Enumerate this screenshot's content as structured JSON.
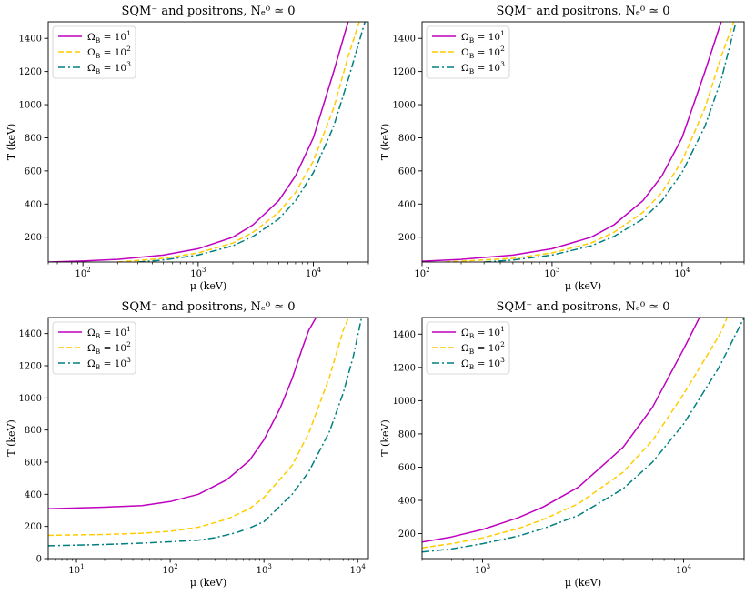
{
  "chart_data": [
    {
      "type": "line",
      "title": "SQM⁻ and positrons, Nₑ⁰ ≃ 0",
      "xlabel": "μ (keV)",
      "ylabel": "T (keV)",
      "xscale": "log",
      "xlim": [
        50,
        30000
      ],
      "ylim": [
        50,
        1500
      ],
      "xticks": [
        {
          "v": 100,
          "b": "10",
          "e": "2"
        },
        {
          "v": 1000,
          "b": "10",
          "e": "3"
        },
        {
          "v": 10000,
          "b": "10",
          "e": "4"
        }
      ],
      "yticks": [
        200,
        400,
        600,
        800,
        1000,
        1200,
        1400
      ],
      "legend_position": "top-left",
      "series": [
        {
          "name": "Ω_B = 10¹",
          "label_base": "Ω",
          "label_sub": "B",
          "label_eq": " = 10",
          "label_exp": "1",
          "color": "#bf00bf",
          "dash": "",
          "x": [
            50,
            100,
            200,
            500,
            1000,
            2000,
            3000,
            5000,
            7000,
            10000,
            15000,
            20000
          ],
          "y": [
            50,
            56,
            66,
            92,
            130,
            200,
            275,
            420,
            570,
            800,
            1200,
            1500
          ]
        },
        {
          "name": "Ω_B = 10²",
          "label_base": "Ω",
          "label_sub": "B",
          "label_eq": " = 10",
          "label_exp": "2",
          "color": "#ffcc00",
          "dash": "6,3",
          "x": [
            200,
            500,
            1000,
            2000,
            3000,
            5000,
            7000,
            10000,
            15000,
            20000,
            25000
          ],
          "y": [
            50,
            72,
            105,
            165,
            230,
            350,
            470,
            660,
            980,
            1290,
            1500
          ]
        },
        {
          "name": "Ω_B = 10³",
          "label_base": "Ω",
          "label_sub": "B",
          "label_eq": " = 10",
          "label_exp": "3",
          "color": "#008080",
          "dash": "8,3,2,3",
          "x": [
            300,
            500,
            1000,
            2000,
            3000,
            5000,
            7000,
            10000,
            15000,
            20000,
            28000
          ],
          "y": [
            50,
            62,
            92,
            148,
            205,
            310,
            420,
            590,
            870,
            1150,
            1500
          ]
        }
      ]
    },
    {
      "type": "line",
      "title": "SQM⁻ and positrons, Nₑ⁰ ≃ 0",
      "xlabel": "μ (keV)",
      "ylabel": "T (keV)",
      "xscale": "log",
      "xlim": [
        100,
        30000
      ],
      "ylim": [
        50,
        1500
      ],
      "xticks": [
        {
          "v": 100,
          "b": "10",
          "e": "2"
        },
        {
          "v": 1000,
          "b": "10",
          "e": "3"
        },
        {
          "v": 10000,
          "b": "10",
          "e": "4"
        }
      ],
      "yticks": [
        200,
        400,
        600,
        800,
        1000,
        1200,
        1400
      ],
      "legend_position": "top-left",
      "series": [
        {
          "name": "Ω_B = 10¹",
          "label_base": "Ω",
          "label_sub": "B",
          "label_eq": " = 10",
          "label_exp": "1",
          "color": "#bf00bf",
          "dash": "",
          "x": [
            100,
            200,
            500,
            1000,
            2000,
            3000,
            5000,
            7000,
            10000,
            15000,
            20000
          ],
          "y": [
            55,
            66,
            92,
            130,
            200,
            275,
            420,
            570,
            800,
            1200,
            1500
          ]
        },
        {
          "name": "Ω_B = 10²",
          "label_base": "Ω",
          "label_sub": "B",
          "label_eq": " = 10",
          "label_exp": "2",
          "color": "#ffcc00",
          "dash": "6,3",
          "x": [
            150,
            500,
            1000,
            2000,
            3000,
            5000,
            7000,
            10000,
            15000,
            20000,
            25000
          ],
          "y": [
            50,
            72,
            105,
            165,
            230,
            350,
            470,
            660,
            980,
            1290,
            1500
          ]
        },
        {
          "name": "Ω_B = 10³",
          "label_base": "Ω",
          "label_sub": "B",
          "label_eq": " = 10",
          "label_exp": "3",
          "color": "#008080",
          "dash": "8,3,2,3",
          "x": [
            300,
            500,
            1000,
            2000,
            3000,
            5000,
            7000,
            10000,
            15000,
            20000,
            26000
          ],
          "y": [
            50,
            62,
            92,
            148,
            205,
            310,
            420,
            590,
            870,
            1150,
            1500
          ]
        }
      ]
    },
    {
      "type": "line",
      "title": "SQM⁻ and positrons, Nₑ⁰ ≃ 0",
      "xlabel": "μ (keV)",
      "ylabel": "T (keV)",
      "xscale": "log",
      "xlim": [
        5,
        13000
      ],
      "ylim": [
        0,
        1500
      ],
      "xticks": [
        {
          "v": 10,
          "b": "10",
          "e": "1"
        },
        {
          "v": 100,
          "b": "10",
          "e": "2"
        },
        {
          "v": 1000,
          "b": "10",
          "e": "3"
        },
        {
          "v": 10000,
          "b": "10",
          "e": "4"
        }
      ],
      "yticks": [
        0,
        200,
        400,
        600,
        800,
        1000,
        1200,
        1400
      ],
      "legend_position": "top-left",
      "series": [
        {
          "name": "Ω_B = 10¹",
          "label_base": "Ω",
          "label_sub": "B",
          "label_eq": " = 10",
          "label_exp": "1",
          "color": "#bf00bf",
          "dash": "",
          "x": [
            5,
            20,
            50,
            100,
            200,
            400,
            700,
            1000,
            1500,
            2000,
            2500,
            3000,
            3600
          ],
          "y": [
            310,
            320,
            330,
            355,
            400,
            490,
            610,
            740,
            940,
            1120,
            1290,
            1420,
            1500
          ]
        },
        {
          "name": "Ω_B = 10²",
          "label_base": "Ω",
          "label_sub": "B",
          "label_eq": " = 10",
          "label_exp": "2",
          "color": "#ffcc00",
          "dash": "6,3",
          "x": [
            5,
            20,
            50,
            100,
            200,
            400,
            700,
            1000,
            2000,
            3000,
            5000,
            7000,
            8000
          ],
          "y": [
            145,
            150,
            158,
            170,
            195,
            245,
            310,
            380,
            580,
            780,
            1130,
            1420,
            1500
          ]
        },
        {
          "name": "Ω_B = 10³",
          "label_base": "Ω",
          "label_sub": "B",
          "label_eq": " = 10",
          "label_exp": "3",
          "color": "#008080",
          "dash": "8,3,2,3",
          "x": [
            5,
            20,
            50,
            100,
            200,
            300,
            500,
            700,
            1000,
            2000,
            3000,
            5000,
            7000,
            9000,
            11000
          ],
          "y": [
            80,
            88,
            96,
            105,
            115,
            130,
            160,
            190,
            230,
            400,
            540,
            790,
            1030,
            1260,
            1500
          ]
        }
      ]
    },
    {
      "type": "line",
      "title": "SQM⁻ and positrons, Nₑ⁰ ≃ 0",
      "xlabel": "μ (keV)",
      "ylabel": "T (keV)",
      "xscale": "log",
      "xlim": [
        500,
        20000
      ],
      "ylim": [
        50,
        1500
      ],
      "xticks": [
        {
          "v": 1000,
          "b": "10",
          "e": "3"
        },
        {
          "v": 10000,
          "b": "10",
          "e": "4"
        }
      ],
      "yticks": [
        200,
        400,
        600,
        800,
        1000,
        1200,
        1400
      ],
      "legend_position": "top-left",
      "series": [
        {
          "name": "Ω_B = 10¹",
          "label_base": "Ω",
          "label_sub": "B",
          "label_eq": " = 10",
          "label_exp": "1",
          "color": "#bf00bf",
          "dash": "",
          "x": [
            500,
            700,
            1000,
            1500,
            2000,
            3000,
            5000,
            7000,
            10000,
            12000
          ],
          "y": [
            150,
            180,
            225,
            295,
            360,
            480,
            720,
            960,
            1310,
            1500
          ]
        },
        {
          "name": "Ω_B = 10²",
          "label_base": "Ω",
          "label_sub": "B",
          "label_eq": " = 10",
          "label_exp": "2",
          "color": "#ffcc00",
          "dash": "6,3",
          "x": [
            500,
            700,
            1000,
            1500,
            2000,
            3000,
            5000,
            7000,
            10000,
            15000,
            16500
          ],
          "y": [
            115,
            140,
            175,
            230,
            285,
            380,
            570,
            760,
            1040,
            1390,
            1500
          ]
        },
        {
          "name": "Ω_B = 10³",
          "label_base": "Ω",
          "label_sub": "B",
          "label_eq": " = 10",
          "label_exp": "3",
          "color": "#008080",
          "dash": "8,3,2,3",
          "x": [
            500,
            700,
            1000,
            1500,
            2000,
            3000,
            5000,
            7000,
            10000,
            15000,
            20000
          ],
          "y": [
            90,
            108,
            140,
            185,
            230,
            310,
            470,
            630,
            860,
            1200,
            1500
          ]
        }
      ]
    }
  ]
}
